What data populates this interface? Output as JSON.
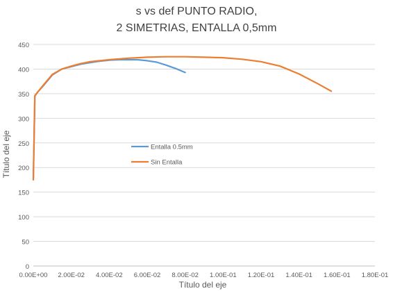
{
  "chart_data": {
    "type": "line",
    "title_lines": [
      "s vs def PUNTO RADIO,",
      "2 SIMETRIAS, ENTALLA 0,5mm"
    ],
    "xlabel": "Título del eje",
    "ylabel": "Título del eje",
    "xlim": [
      0,
      0.18
    ],
    "ylim": [
      0,
      450
    ],
    "x_ticks": [
      0,
      0.02,
      0.04,
      0.06,
      0.08,
      0.1,
      0.12,
      0.14,
      0.16,
      0.18
    ],
    "x_tick_labels": [
      "0.00E+00",
      "2.00E-02",
      "4.00E-02",
      "6.00E-02",
      "8.00E-02",
      "1.00E-01",
      "1.20E-01",
      "1.40E-01",
      "1.60E-01",
      "1.80E-01"
    ],
    "y_ticks": [
      0,
      50,
      100,
      150,
      200,
      250,
      300,
      350,
      400,
      450
    ],
    "y_tick_labels": [
      "0",
      "50",
      "100",
      "150",
      "200",
      "250",
      "300",
      "350",
      "400",
      "450"
    ],
    "grid": "horizontal",
    "legend_position": "center-left",
    "series": [
      {
        "name": "Entalla 0.5mm",
        "color": "#5B9BD5",
        "x": [
          0,
          0.0008,
          0.002,
          0.005,
          0.01,
          0.015,
          0.02,
          0.025,
          0.03,
          0.035,
          0.04,
          0.045,
          0.05,
          0.055,
          0.06,
          0.065,
          0.07,
          0.075,
          0.08
        ],
        "y": [
          175,
          345,
          352,
          365,
          388,
          400,
          405,
          410,
          413,
          416,
          418,
          419,
          419,
          419,
          417,
          414,
          408,
          401,
          393
        ]
      },
      {
        "name": "Sin Entalla",
        "color": "#ED7D31",
        "x": [
          0,
          0.0008,
          0.002,
          0.005,
          0.01,
          0.015,
          0.02,
          0.025,
          0.03,
          0.04,
          0.05,
          0.06,
          0.07,
          0.08,
          0.09,
          0.1,
          0.11,
          0.12,
          0.13,
          0.14,
          0.15,
          0.157
        ],
        "y": [
          175,
          346,
          352,
          366,
          389,
          400,
          406,
          411,
          415,
          419,
          422,
          424,
          425,
          425,
          424,
          423,
          420,
          415,
          406,
          390,
          370,
          355
        ]
      }
    ]
  }
}
